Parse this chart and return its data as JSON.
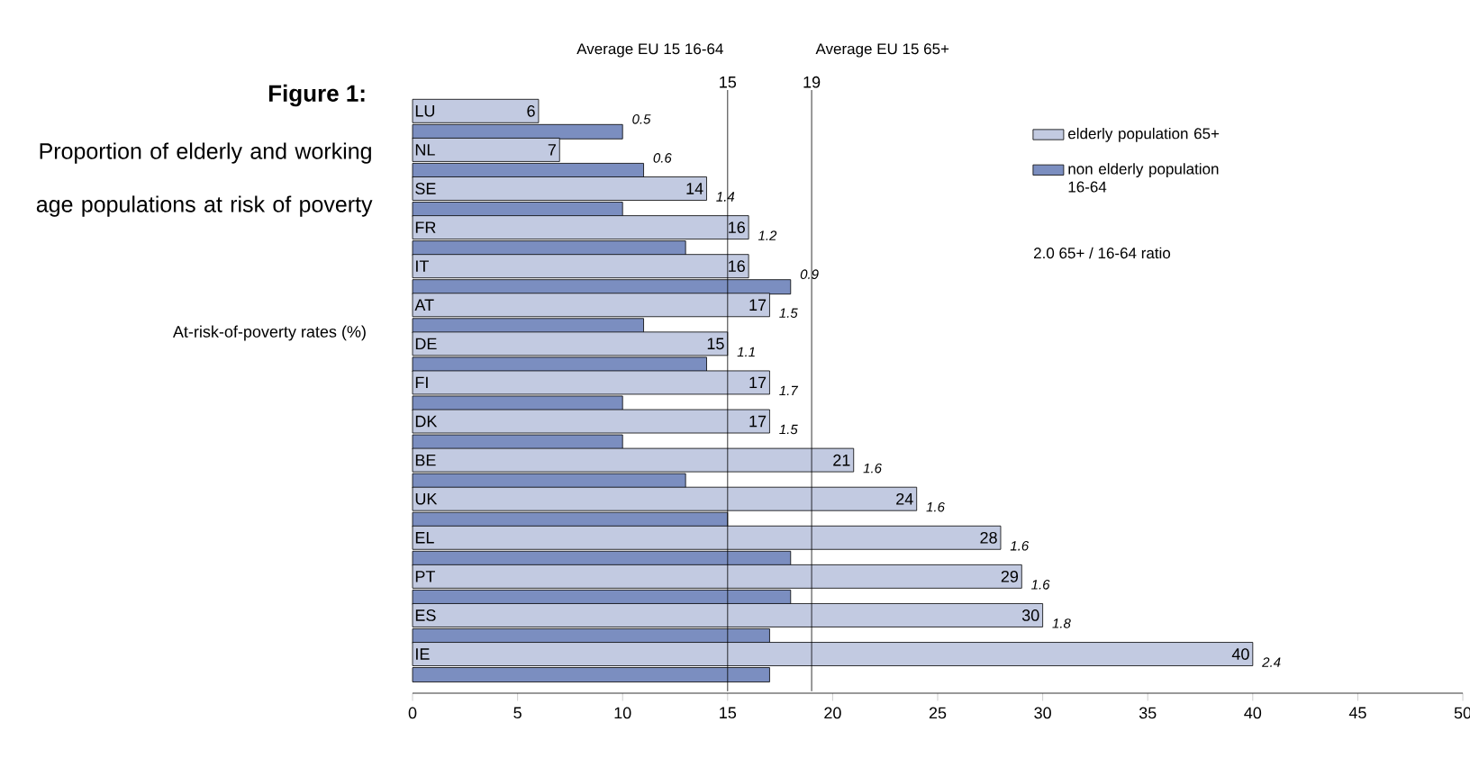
{
  "chart_data": {
    "type": "bar",
    "orientation": "horizontal",
    "title": "Figure 1:",
    "subtitle": "Proportion of elderly and working age populations at risk of poverty",
    "ylabel": "At-risk-of-poverty rates (%)",
    "categories": [
      "LU",
      "NL",
      "SE",
      "FR",
      "IT",
      "AT",
      "DE",
      "FI",
      "DK",
      "BE",
      "UK",
      "EL",
      "PT",
      "ES",
      "IE"
    ],
    "series": [
      {
        "name": "elderly population 65+",
        "color": "#c2cae1",
        "values": [
          6,
          7,
          14,
          16,
          16,
          17,
          15,
          17,
          17,
          21,
          24,
          28,
          29,
          30,
          40
        ],
        "value_labels": [
          "6",
          "7",
          "14",
          "16",
          "16",
          "17",
          "15",
          "17",
          "17",
          "21",
          "24",
          "28",
          "29",
          "30",
          "40"
        ]
      },
      {
        "name": "non elderly population 16-64",
        "color": "#7b8ec0",
        "values": [
          10,
          11,
          10,
          13,
          18,
          11,
          14,
          10,
          10,
          13,
          15,
          18,
          18,
          17,
          17
        ]
      }
    ],
    "xlim": [
      0,
      50
    ],
    "xticks": [
      0,
      5,
      10,
      15,
      20,
      25,
      30,
      35,
      40,
      45,
      50
    ],
    "ref_lines": [
      {
        "axis": "x",
        "value": 15,
        "label": "Average EU 15 16-64"
      },
      {
        "axis": "x",
        "value": 19,
        "label": "Average EU 15 65+"
      }
    ],
    "annotations": [
      "0.5",
      "0.6",
      "1.4",
      "1.2",
      "0.9",
      "1.5",
      "1.1",
      "1.7",
      "1.5",
      "1.6",
      "1.6",
      "1.6",
      "1.6",
      "1.8",
      "2.4",
      "2.0 65+ / 16-64 ratio",
      "15",
      "19"
    ],
    "legend": "top right",
    "grid": false
  }
}
